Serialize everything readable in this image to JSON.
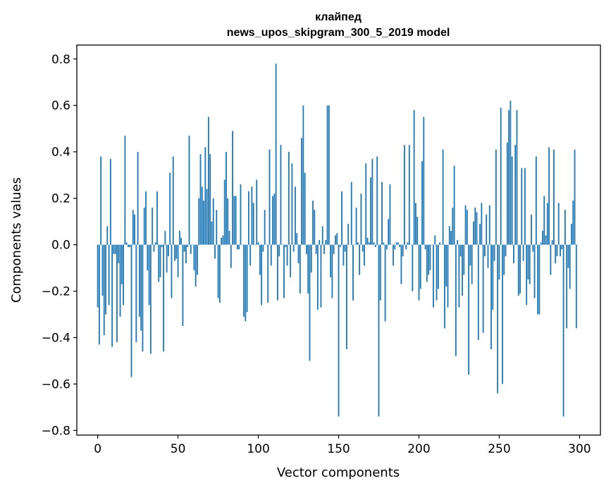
{
  "chart_data": {
    "type": "bar",
    "title_line1": "клайпед",
    "title_line2": "news_upos_skipgram_300_5_2019 model",
    "xlabel": "Vector components",
    "ylabel": "Components values",
    "xlim": [
      -13,
      313
    ],
    "ylim": [
      -0.82,
      0.86
    ],
    "xticks": [
      0,
      50,
      100,
      150,
      200,
      250,
      300
    ],
    "xtick_labels": [
      "0",
      "50",
      "100",
      "150",
      "200",
      "250",
      "300"
    ],
    "yticks": [
      -0.8,
      -0.6,
      -0.4,
      -0.2,
      0.0,
      0.2,
      0.4,
      0.6,
      0.8
    ],
    "ytick_labels": [
      "−0.8",
      "−0.6",
      "−0.4",
      "−0.2",
      "0.0",
      "0.2",
      "0.4",
      "0.6",
      "0.8"
    ],
    "bar_color": "#1f77b4",
    "series": [
      {
        "name": "клайпед",
        "values": [
          -0.27,
          -0.43,
          0.38,
          -0.22,
          -0.39,
          -0.3,
          0.08,
          -0.26,
          0.37,
          -0.44,
          -0.04,
          -0.04,
          -0.42,
          -0.08,
          -0.31,
          -0.17,
          -0.26,
          0.47,
          0.01,
          -0.01,
          -0.01,
          -0.57,
          0.15,
          0.13,
          -0.42,
          0.4,
          -0.31,
          -0.37,
          -0.46,
          0.16,
          0.23,
          -0.11,
          -0.26,
          -0.47,
          0.16,
          -0.03,
          0.01,
          0.23,
          -0.16,
          -0.14,
          -0.01,
          -0.46,
          0.06,
          -0.12,
          -0.05,
          0.31,
          -0.23,
          0.38,
          -0.07,
          -0.06,
          -0.14,
          0.06,
          0.03,
          -0.35,
          -0.03,
          -0.08,
          -0.01,
          0.47,
          -0.04,
          0.0,
          -0.11,
          -0.18,
          -0.13,
          0.2,
          0.39,
          0.25,
          0.19,
          0.42,
          0.24,
          0.55,
          0.39,
          0.1,
          0.2,
          -0.06,
          0.15,
          -0.23,
          -0.25,
          0.03,
          0.04,
          0.28,
          0.4,
          0.2,
          0.06,
          -0.1,
          0.49,
          0.21,
          0.21,
          -0.02,
          -0.02,
          0.26,
          0.0,
          -0.31,
          -0.33,
          -0.29,
          0.23,
          -0.09,
          0.25,
          0.18,
          0.0,
          0.28,
          0.01,
          -0.13,
          -0.26,
          -0.03,
          0.15,
          0.0,
          -0.25,
          0.41,
          -0.09,
          0.21,
          0.22,
          0.78,
          -0.24,
          -0.05,
          0.43,
          0.0,
          -0.23,
          -0.01,
          -0.09,
          0.4,
          -0.14,
          0.35,
          -0.03,
          0.25,
          0.05,
          -0.08,
          -0.21,
          0.46,
          0.6,
          0.31,
          -0.04,
          -0.21,
          -0.5,
          -0.12,
          0.19,
          0.15,
          -0.04,
          -0.28,
          0.02,
          -0.27,
          0.08,
          -0.04,
          0.02,
          0.6,
          0.6,
          -0.14,
          -0.23,
          -0.04,
          0.04,
          0.05,
          -0.74,
          -0.01,
          0.23,
          -0.09,
          -0.03,
          -0.45,
          0.09,
          0.0,
          0.27,
          -0.24,
          0.0,
          0.16,
          0.01,
          -0.13,
          0.22,
          -0.03,
          -0.09,
          0.35,
          0.03,
          0.01,
          0.29,
          0.37,
          0.01,
          -0.01,
          0.38,
          -0.74,
          -0.24,
          0.27,
          0.01,
          -0.33,
          -0.02,
          0.11,
          0.26,
          0.0,
          -0.09,
          -0.02,
          0.01,
          0.01,
          -0.01,
          -0.17,
          -0.05,
          0.43,
          -0.02,
          0.01,
          0.43,
          0.0,
          -0.2,
          0.58,
          0.18,
          0.12,
          -0.24,
          -0.19,
          0.36,
          0.55,
          -0.02,
          -0.16,
          -0.13,
          -0.11,
          0.0,
          -0.27,
          0.04,
          -0.24,
          -0.19,
          0.01,
          0.0,
          0.41,
          -0.36,
          -0.18,
          -0.27,
          0.08,
          0.06,
          0.16,
          0.34,
          -0.48,
          0.02,
          -0.27,
          -0.05,
          -0.22,
          -0.13,
          0.17,
          0.15,
          -0.56,
          -0.09,
          -0.17,
          0.1,
          0.16,
          0.14,
          -0.41,
          0.09,
          0.18,
          -0.38,
          -0.05,
          0.13,
          -0.1,
          0.17,
          -0.45,
          -0.28,
          -0.07,
          0.41,
          -0.64,
          -0.15,
          0.59,
          -0.6,
          -0.13,
          -0.05,
          0.44,
          0.58,
          0.62,
          0.38,
          -0.08,
          0.43,
          0.58,
          -0.22,
          -0.21,
          0.33,
          -0.07,
          0.33,
          -0.26,
          -0.15,
          -0.17,
          0.13,
          -0.03,
          -0.23,
          0.38,
          -0.3,
          -0.3,
          0.01,
          0.06,
          0.21,
          0.04,
          0.18,
          0.42,
          -0.13,
          0.02,
          0.41,
          -0.08,
          -0.05,
          0.18,
          -0.05,
          -0.02,
          -0.74,
          0.15,
          -0.36,
          -0.1,
          -0.19,
          0.09,
          0.19,
          0.41,
          -0.36,
          0.0
        ]
      }
    ]
  }
}
